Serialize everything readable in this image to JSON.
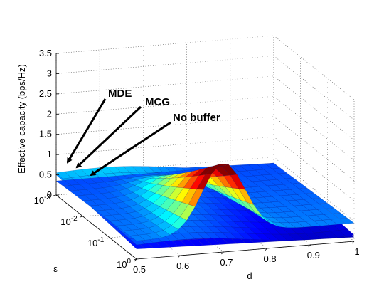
{
  "chart_data": {
    "type": "surface3d",
    "title": "",
    "xlabel": "d",
    "ylabel": "ε",
    "zlabel": "Effective capacity (bps/Hz)",
    "x_ticks": [
      "0.5",
      "0.6",
      "0.7",
      "0.8",
      "0.9",
      "1"
    ],
    "y_ticks": [
      {
        "base": "10",
        "exp": "-3"
      },
      {
        "base": "10",
        "exp": "-2"
      },
      {
        "base": "10",
        "exp": "-1"
      },
      {
        "base": "10",
        "exp": "0"
      }
    ],
    "z_ticks": [
      "0",
      "0.5",
      "1",
      "1.5",
      "2",
      "2.5",
      "3",
      "3.5"
    ],
    "xlim": [
      0.5,
      1
    ],
    "ylim_log10": [
      -3,
      0
    ],
    "zlim": [
      0,
      3.5
    ],
    "grid": true,
    "colormap": "jet",
    "series": [
      {
        "name": "MDE",
        "peak_d": 0.7,
        "peak_capacity": 1.75
      },
      {
        "name": "MCG",
        "peak_d": 0.7,
        "peak_capacity": 0.55
      },
      {
        "name": "No buffer",
        "peak_d": 0.6,
        "peak_capacity": 0.5
      }
    ],
    "annotations": [
      {
        "text": "MDE",
        "points_to": "MDE"
      },
      {
        "text": "MCG",
        "points_to": "MCG"
      },
      {
        "text": "No buffer",
        "points_to": "No buffer"
      }
    ]
  }
}
